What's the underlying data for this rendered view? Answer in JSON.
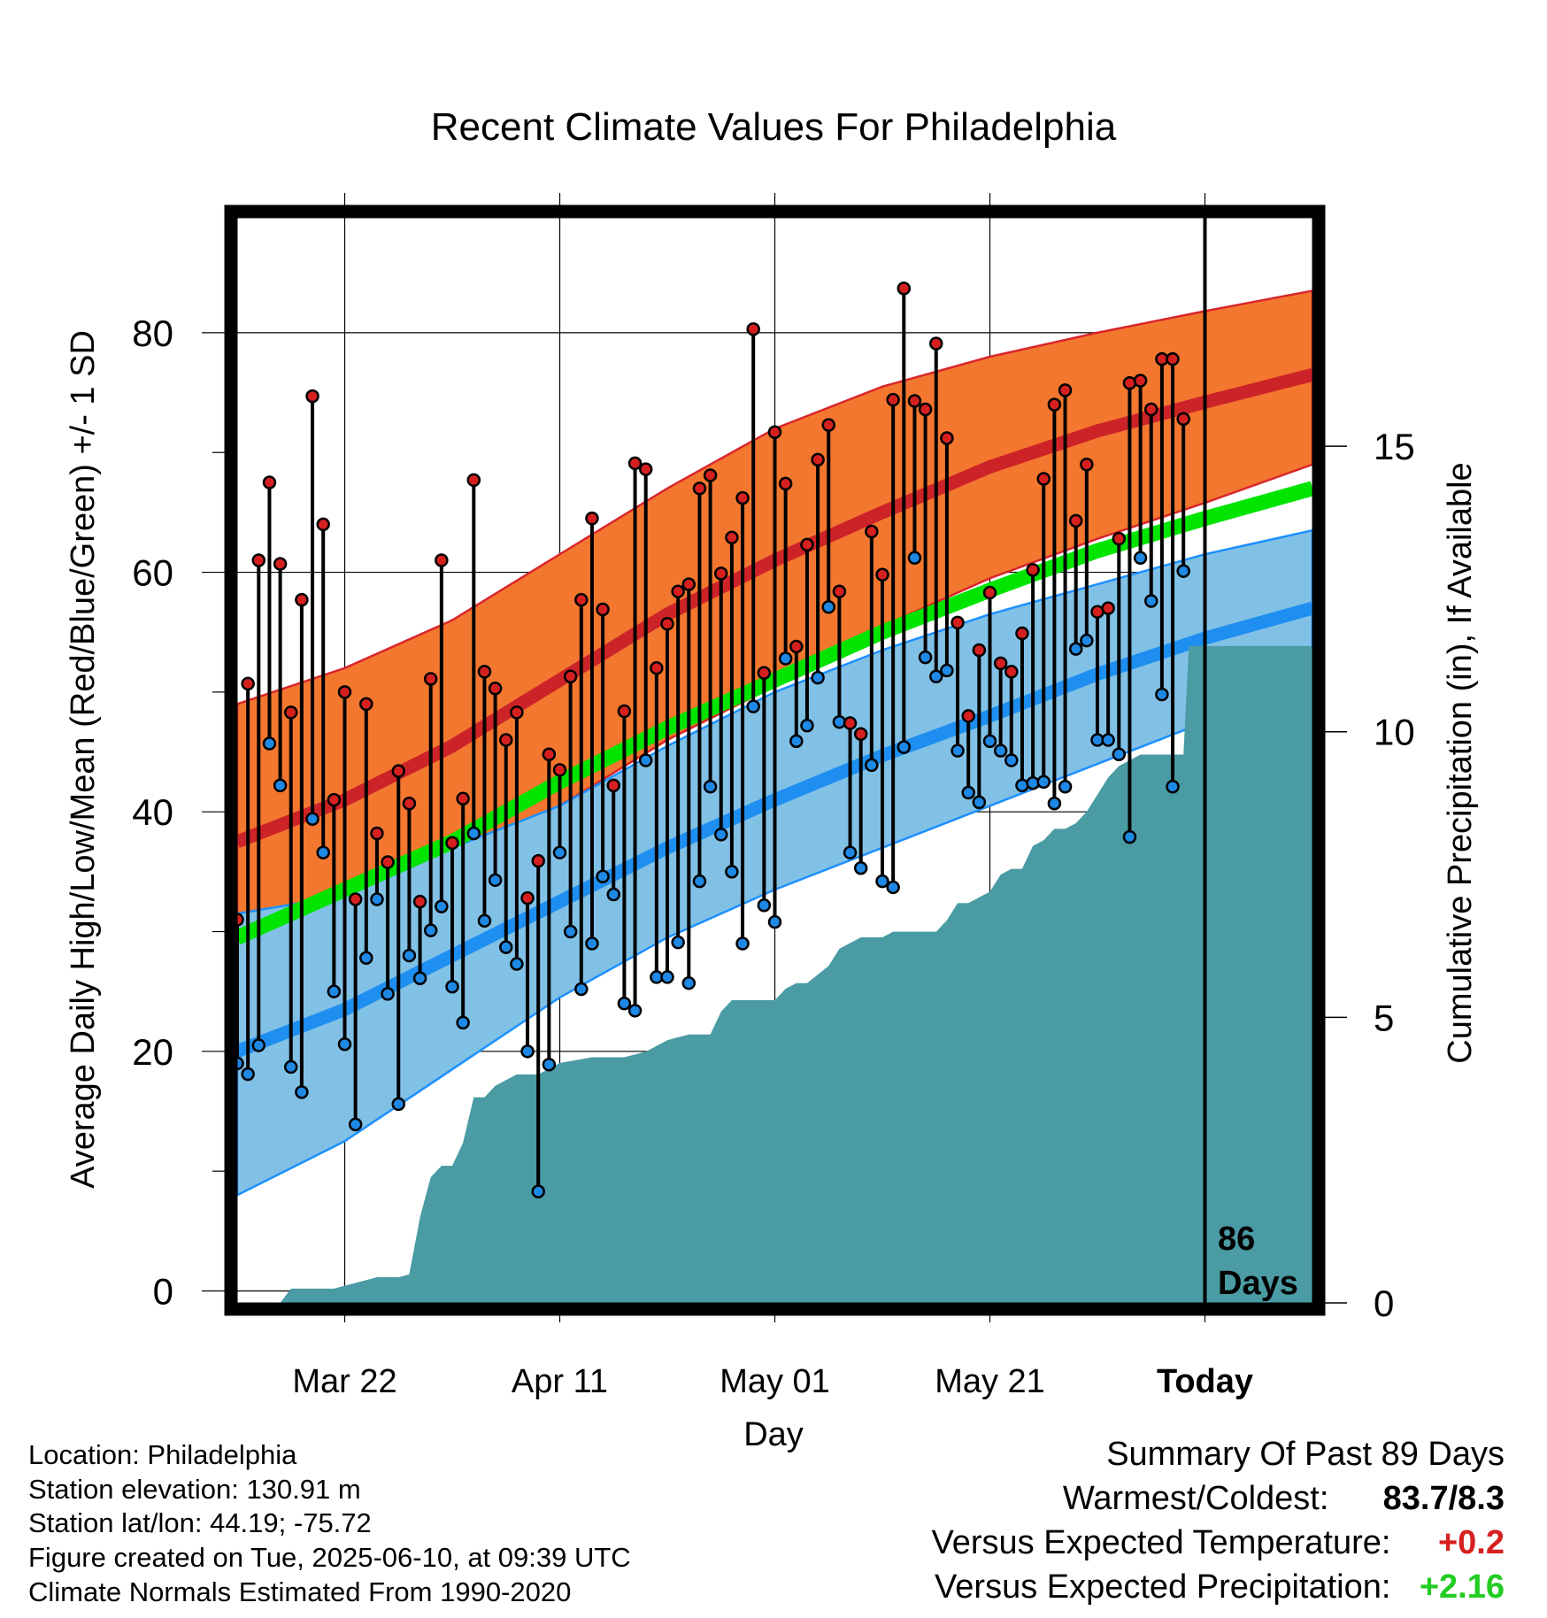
{
  "chart_data": {
    "type": "line",
    "title": "Recent Climate Values For Philadelphia",
    "xlabel": "Day",
    "ylabel": "Average Daily High/Low/Mean (Red/Blue/Green) +/- 1 SD",
    "ylabel_right": "Cumulative Precipitation (in), If Available",
    "x_tick_labels": [
      "Mar 22",
      "Apr 11",
      "May 01",
      "May 21",
      "Today"
    ],
    "x_tick_days": [
      10,
      30,
      50,
      70,
      90
    ],
    "xlim": [
      0,
      100
    ],
    "y_ticks": [
      0,
      20,
      40,
      60,
      80
    ],
    "ylim": [
      -1.0,
      89.6
    ],
    "y_right_ticks": [
      0,
      5,
      10,
      15
    ],
    "today_day": 90,
    "days_annotation": [
      "86",
      "Days"
    ],
    "grid": true,
    "colors": {
      "high_band": "#f4772f",
      "high_edge": "#d9262c",
      "high_mean": "#cc2328",
      "low_band": "#82c1e6",
      "low_edge": "#1e90ff",
      "low_mean": "#1e8ff0",
      "mean_line": "#00e400",
      "precip": "#4a9ba4",
      "high_dot": "#d62020",
      "low_dot": "#1e88e5"
    },
    "normals": {
      "days": [
        0,
        10,
        20,
        30,
        40,
        50,
        60,
        70,
        80,
        90,
        100
      ],
      "high_mean": [
        37.5,
        41.0,
        45.5,
        51.0,
        56.5,
        61.0,
        65.0,
        68.8,
        71.8,
        74.2,
        76.5
      ],
      "high_sd_upper": [
        49.0,
        52.0,
        56.0,
        61.5,
        67.0,
        72.0,
        75.5,
        78.0,
        80.0,
        81.8,
        83.5
      ],
      "high_sd_lower": [
        28.0,
        31.5,
        35.5,
        40.5,
        46.0,
        50.5,
        55.5,
        59.5,
        62.8,
        65.8,
        69.0
      ],
      "mean_line": [
        29.5,
        33.5,
        37.5,
        42.5,
        47.0,
        51.0,
        55.0,
        58.5,
        61.8,
        64.5,
        67.0
      ],
      "low_mean": [
        20.0,
        23.5,
        28.0,
        32.5,
        37.0,
        41.0,
        44.7,
        48.0,
        51.5,
        54.5,
        57.0
      ],
      "low_sd_upper": [
        31.5,
        33.0,
        37.0,
        40.5,
        45.5,
        50.0,
        53.5,
        56.5,
        59.0,
        61.5,
        63.5
      ],
      "low_sd_lower": [
        8.0,
        12.5,
        18.5,
        24.5,
        29.5,
        33.5,
        37.0,
        40.5,
        44.0,
        47.5,
        50.5
      ]
    },
    "daily": {
      "days": [
        0,
        1,
        2,
        3,
        4,
        5,
        6,
        7,
        8,
        9,
        10,
        11,
        12,
        13,
        14,
        15,
        16,
        17,
        18,
        19,
        20,
        21,
        22,
        23,
        24,
        25,
        26,
        27,
        28,
        29,
        30,
        31,
        32,
        33,
        34,
        35,
        36,
        37,
        38,
        39,
        40,
        41,
        42,
        43,
        44,
        45,
        46,
        47,
        48,
        49,
        50,
        51,
        52,
        53,
        54,
        55,
        56,
        57,
        58,
        59,
        60,
        61,
        62,
        63,
        64,
        65,
        66,
        67,
        68,
        69,
        70,
        71,
        72,
        73,
        74,
        75,
        76,
        77,
        78,
        79,
        80,
        81,
        82,
        83,
        84,
        85,
        86,
        87,
        88
      ],
      "high": [
        31.0,
        50.7,
        61.0,
        67.5,
        60.7,
        48.3,
        57.7,
        74.7,
        64.0,
        41.0,
        50.0,
        32.7,
        49.0,
        38.2,
        35.8,
        43.4,
        40.7,
        32.5,
        51.1,
        61.0,
        37.4,
        41.1,
        67.7,
        51.7,
        50.3,
        46.0,
        48.3,
        32.8,
        35.9,
        44.8,
        43.5,
        51.3,
        57.7,
        64.5,
        56.9,
        42.2,
        48.4,
        69.1,
        68.6,
        52.0,
        55.7,
        58.4,
        59.0,
        67.0,
        68.1,
        59.9,
        62.9,
        66.2,
        80.3,
        51.6,
        71.7,
        67.4,
        53.8,
        62.3,
        69.4,
        72.3,
        58.4,
        47.4,
        46.5,
        63.4,
        59.8,
        74.4,
        83.7,
        74.3,
        73.6,
        79.1,
        71.2,
        55.8,
        48.0,
        53.5,
        58.3,
        52.4,
        51.7,
        54.9,
        60.2,
        67.8,
        74.0,
        75.2,
        64.3,
        69.0,
        56.7,
        57.0,
        62.8,
        75.8,
        76.0,
        73.6,
        77.8,
        77.8,
        72.8
      ],
      "low": [
        19.0,
        18.1,
        20.5,
        45.7,
        42.2,
        18.7,
        16.6,
        39.4,
        36.6,
        25.0,
        20.6,
        13.9,
        27.8,
        32.7,
        24.8,
        15.6,
        28.0,
        26.1,
        30.1,
        32.1,
        25.4,
        22.4,
        38.2,
        30.9,
        34.3,
        28.7,
        27.3,
        20.0,
        8.3,
        18.9,
        36.6,
        30.0,
        25.2,
        29.0,
        34.6,
        33.1,
        24.0,
        23.4,
        44.3,
        26.2,
        26.2,
        29.1,
        25.7,
        34.2,
        42.1,
        38.1,
        35.0,
        29.0,
        48.8,
        32.2,
        30.8,
        52.8,
        45.9,
        47.2,
        51.2,
        57.1,
        47.5,
        36.6,
        35.3,
        43.9,
        34.2,
        33.7,
        45.4,
        61.2,
        52.9,
        51.3,
        51.8,
        45.1,
        41.6,
        40.8,
        45.9,
        45.1,
        44.3,
        42.2,
        42.4,
        42.5,
        40.7,
        42.1,
        53.6,
        54.3,
        46.0,
        46.0,
        44.8,
        37.9,
        61.2,
        57.6,
        49.8,
        42.1,
        60.1
      ]
    },
    "precip": {
      "days": [
        0,
        4,
        5,
        6,
        7,
        8,
        9,
        10,
        12,
        13,
        15,
        16,
        17,
        18,
        19,
        20,
        21,
        22,
        23,
        24,
        25,
        26,
        28,
        30,
        33,
        36,
        38,
        40,
        42,
        44,
        45,
        46,
        47,
        48,
        50,
        51,
        52,
        53,
        55,
        56,
        57,
        58,
        59,
        60,
        61,
        62,
        63,
        64,
        65,
        66,
        67,
        68,
        69,
        70,
        71,
        72,
        73,
        74,
        75,
        76,
        77,
        78,
        79,
        80,
        81,
        82,
        83,
        84,
        85,
        86,
        88,
        88.5,
        89,
        90,
        100
      ],
      "values": [
        0,
        0,
        0.25,
        0.25,
        0.25,
        0.25,
        0.25,
        0.3,
        0.4,
        0.45,
        0.45,
        0.5,
        1.5,
        2.2,
        2.4,
        2.4,
        2.8,
        3.6,
        3.6,
        3.8,
        3.9,
        4.0,
        4.0,
        4.2,
        4.3,
        4.3,
        4.4,
        4.6,
        4.7,
        4.7,
        5.1,
        5.3,
        5.3,
        5.3,
        5.3,
        5.5,
        5.6,
        5.6,
        5.9,
        6.2,
        6.3,
        6.4,
        6.4,
        6.4,
        6.5,
        6.5,
        6.5,
        6.5,
        6.5,
        6.7,
        7.0,
        7.0,
        7.1,
        7.2,
        7.5,
        7.6,
        7.6,
        8.0,
        8.1,
        8.3,
        8.3,
        8.4,
        8.6,
        8.9,
        9.2,
        9.4,
        9.5,
        9.6,
        9.6,
        9.6,
        9.6,
        11.5,
        11.5,
        11.5,
        11.5
      ]
    },
    "precip_ylim": [
      0,
      19.0
    ]
  },
  "footer": {
    "location": "Location: Philadelphia",
    "elevation": "Station elevation: 130.91 m",
    "latlon": "Station lat/lon: 44.19; -75.72",
    "created": "Figure created on Tue, 2025-06-10, at 09:39 UTC",
    "normals": "Climate Normals Estimated From 1990-2020"
  },
  "summary": {
    "title": "Summary Of Past 89 Days",
    "warmest_label": "Warmest/Coldest:",
    "warmest_value": "83.7/8.3",
    "temp_label": "Versus Expected Temperature:",
    "temp_value": "+0.2",
    "temp_color": "#d62020",
    "precip_label": "Versus Expected Precipitation:",
    "precip_value": "+2.16",
    "precip_color": "#22cc22"
  }
}
